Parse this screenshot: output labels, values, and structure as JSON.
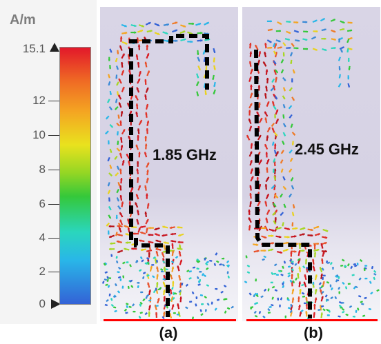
{
  "colorbar": {
    "unit": "A/m",
    "max_label": "15.1",
    "ticks": [
      "12",
      "10",
      "8",
      "6",
      "4",
      "2",
      "0"
    ],
    "max_value": 15.1,
    "min_value": 0,
    "colors": [
      "#e2182a",
      "#ef6a24",
      "#f4a522",
      "#e9e21e",
      "#93d624",
      "#35c83a",
      "#2ad6bd",
      "#29b6e8",
      "#3362d6"
    ]
  },
  "panels": [
    {
      "frequency": "1.85 GHz",
      "caption": "(a)"
    },
    {
      "frequency": "2.45 GHz",
      "caption": "(b)"
    }
  ],
  "colors": {
    "current_path": "#000000",
    "ground_line": "#ff0000",
    "background": "#d9d5e6"
  }
}
